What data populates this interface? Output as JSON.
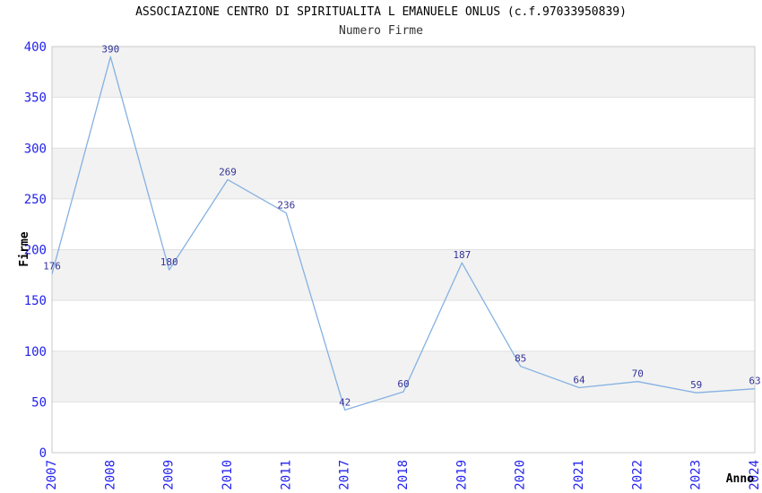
{
  "chart_data": {
    "type": "line",
    "title": "ASSOCIAZIONE CENTRO DI SPIRITUALITA L EMANUELE ONLUS (c.f.97033950839)",
    "subtitle": "Numero Firme",
    "xlabel": "Anno",
    "ylabel": "Firme",
    "categories": [
      "2007",
      "2008",
      "2009",
      "2010",
      "2011",
      "2017",
      "2018",
      "2019",
      "2020",
      "2021",
      "2022",
      "2023",
      "2024"
    ],
    "values": [
      176,
      390,
      180,
      269,
      236,
      42,
      60,
      187,
      85,
      64,
      70,
      59,
      63
    ],
    "ylim": [
      0,
      400
    ],
    "yticks": [
      0,
      50,
      100,
      150,
      200,
      250,
      300,
      350,
      400
    ],
    "grid": "horizontal-bands",
    "legend": "none",
    "xtick_rotation": 90,
    "point_labels_visible": true,
    "colors": {
      "line": "#85b1e2",
      "tick_labels": "#2222ee",
      "data_labels": "#333399",
      "band": "#f2f2f2",
      "gridline": "#e0e0e0",
      "border": "#c9c9c9",
      "title": "#000000",
      "subtitle": "#333333",
      "axis_labels": "#000000",
      "background": "#ffffff"
    }
  }
}
